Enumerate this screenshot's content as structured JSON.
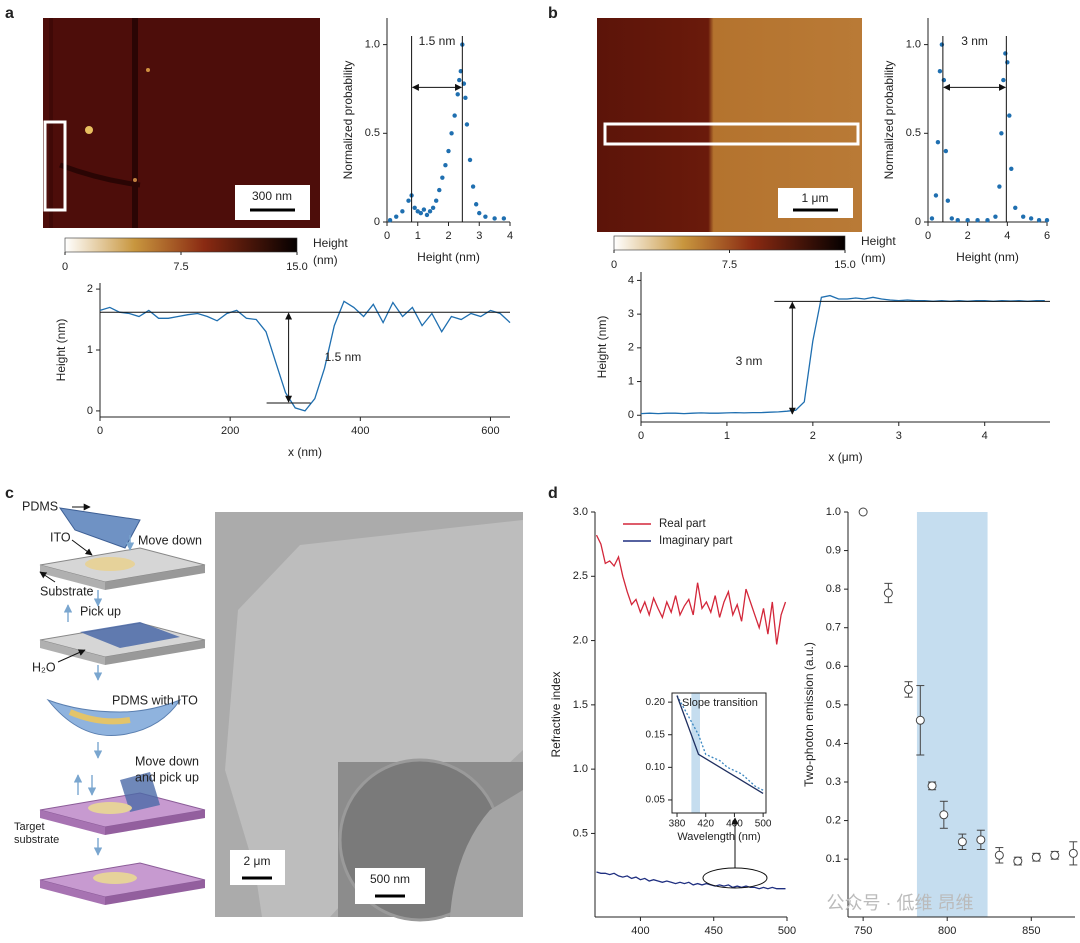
{
  "panel_labels": [
    "a",
    "b",
    "c",
    "d"
  ],
  "images": {
    "afm_a_scale": "300 nm",
    "afm_b_scale": "1 μm",
    "sem_scale": "2 μm",
    "sem_inset_scale": "500 nm"
  },
  "schematic": {
    "pdms": "PDMS",
    "ito": "ITO",
    "move_down": "Move down",
    "substrate": "Substrate",
    "pick_up": "Pick up",
    "water": "H₂O",
    "pdms_with_ito": "PDMS with ITO",
    "move_down_pick_up": [
      "Move down",
      "and pick up"
    ],
    "target_substrate": [
      "Target",
      "substrate"
    ]
  },
  "watermark": "公众号 · 低维 昂维",
  "colorbars": [
    {
      "lim": [
        0,
        15
      ],
      "ticks": [
        0,
        7.5,
        {
          "value": 15,
          "label": "15.0"
        }
      ],
      "label": [
        "Height",
        "(nm)"
      ]
    },
    {
      "lim": [
        0,
        15
      ],
      "ticks": [
        0,
        7.5,
        {
          "value": 15,
          "label": "15.0"
        }
      ],
      "label": [
        "Height",
        "(nm)"
      ]
    }
  ],
  "chart_data": [
    {
      "type": "scatter",
      "xlabel": "Height (nm)",
      "ylabel": "Normalized probability",
      "color": "#1f6fb0",
      "x": [
        0.1,
        0.3,
        0.5,
        0.7,
        0.8,
        0.9,
        1.0,
        1.1,
        1.2,
        1.3,
        1.4,
        1.5,
        1.6,
        1.7,
        1.8,
        1.9,
        2.0,
        2.1,
        2.2,
        2.3,
        2.35,
        2.4,
        2.45,
        2.5,
        2.55,
        2.6,
        2.7,
        2.8,
        2.9,
        3.0,
        3.2,
        3.5,
        3.8
      ],
      "y": [
        0.01,
        0.03,
        0.06,
        0.12,
        0.15,
        0.08,
        0.06,
        0.05,
        0.07,
        0.04,
        0.06,
        0.08,
        0.12,
        0.18,
        0.25,
        0.32,
        0.4,
        0.5,
        0.6,
        0.72,
        0.8,
        0.85,
        1.0,
        0.78,
        0.7,
        0.55,
        0.35,
        0.2,
        0.1,
        0.05,
        0.03,
        0.02,
        0.02
      ],
      "xlim": [
        0,
        4
      ],
      "xticks": [
        0,
        1,
        2,
        3,
        4
      ],
      "ylim": [
        0,
        1.15
      ],
      "yticks": [
        0,
        0.5,
        {
          "value": 1,
          "label": "1.0"
        }
      ],
      "markers": [
        0.8,
        2.45
      ],
      "annotation": "1.5 nm"
    },
    {
      "type": "line",
      "xlabel": "x (nm)",
      "ylabel": "Height (nm)",
      "color": "#1f6fb0",
      "x": [
        0,
        15,
        30,
        45,
        60,
        75,
        90,
        105,
        120,
        135,
        150,
        165,
        180,
        195,
        210,
        225,
        240,
        255,
        270,
        285,
        300,
        315,
        330,
        345,
        360,
        375,
        390,
        405,
        420,
        435,
        450,
        465,
        480,
        495,
        510,
        525,
        540,
        555,
        570,
        585,
        600,
        615,
        630
      ],
      "y": [
        1.65,
        1.7,
        1.62,
        1.6,
        1.55,
        1.65,
        1.52,
        1.52,
        1.55,
        1.58,
        1.6,
        1.55,
        1.48,
        1.6,
        1.65,
        1.52,
        1.5,
        1.3,
        0.8,
        0.3,
        0.05,
        0.0,
        0.2,
        0.7,
        1.4,
        1.8,
        1.7,
        1.55,
        1.75,
        1.45,
        1.78,
        1.55,
        1.7,
        1.4,
        1.6,
        1.3,
        1.55,
        1.5,
        1.6,
        1.55,
        1.65,
        1.6,
        1.45
      ],
      "xlim": [
        0,
        630
      ],
      "xticks": [
        0,
        200,
        400,
        600
      ],
      "ylim": [
        -0.1,
        2.1
      ],
      "yticks": [
        0,
        1,
        2
      ],
      "hlines": [
        1.62,
        0.13
      ],
      "annotation": "1.5 nm"
    },
    {
      "type": "scatter",
      "xlabel": "Height (nm)",
      "ylabel": "Normalized probability",
      "color": "#1f6fb0",
      "x": [
        0.2,
        0.4,
        0.5,
        0.6,
        0.7,
        0.8,
        0.9,
        1.0,
        1.2,
        1.5,
        2.0,
        2.5,
        3.0,
        3.4,
        3.6,
        3.7,
        3.8,
        3.9,
        4.0,
        4.1,
        4.2,
        4.4,
        4.8,
        5.2,
        5.6,
        6.0
      ],
      "y": [
        0.02,
        0.15,
        0.45,
        0.85,
        1.0,
        0.8,
        0.4,
        0.12,
        0.02,
        0.01,
        0.01,
        0.01,
        0.01,
        0.03,
        0.2,
        0.5,
        0.8,
        0.95,
        0.9,
        0.6,
        0.3,
        0.08,
        0.03,
        0.02,
        0.01,
        0.01
      ],
      "xlim": [
        0,
        6
      ],
      "xticks": [
        0,
        2,
        4,
        6
      ],
      "ylim": [
        0,
        1.15
      ],
      "yticks": [
        0,
        0.5,
        {
          "value": 1,
          "label": "1.0"
        }
      ],
      "markers": [
        0.75,
        3.95
      ],
      "annotation": "3 nm"
    },
    {
      "type": "line",
      "xlabel": "x (μm)",
      "ylabel": "Height (nm)",
      "color": "#1f6fb0",
      "x": [
        0,
        0.1,
        0.2,
        0.3,
        0.4,
        0.5,
        0.6,
        0.7,
        0.8,
        0.9,
        1.0,
        1.1,
        1.2,
        1.3,
        1.4,
        1.5,
        1.6,
        1.7,
        1.8,
        1.9,
        2.0,
        2.1,
        2.2,
        2.3,
        2.4,
        2.5,
        2.6,
        2.7,
        2.8,
        2.9,
        3.0,
        3.1,
        3.2,
        3.3,
        3.4,
        3.5,
        3.6,
        3.7,
        3.8,
        3.9,
        4.0,
        4.1,
        4.2,
        4.3,
        4.4,
        4.5,
        4.6,
        4.7
      ],
      "y": [
        0.05,
        0.06,
        0.05,
        0.06,
        0.06,
        0.05,
        0.06,
        0.07,
        0.06,
        0.06,
        0.07,
        0.08,
        0.07,
        0.08,
        0.08,
        0.09,
        0.1,
        0.12,
        0.15,
        0.4,
        2.2,
        3.5,
        3.55,
        3.45,
        3.45,
        3.48,
        3.45,
        3.5,
        3.45,
        3.42,
        3.4,
        3.42,
        3.4,
        3.4,
        3.38,
        3.4,
        3.38,
        3.4,
        3.38,
        3.4,
        3.4,
        3.38,
        3.4,
        3.39,
        3.4,
        3.38,
        3.4,
        3.4
      ],
      "xlim": [
        0,
        4.76
      ],
      "xticks": [
        0,
        1,
        2,
        3,
        4
      ],
      "ylim": [
        -0.2,
        4.25
      ],
      "yticks": [
        0,
        1,
        2,
        3,
        4
      ],
      "reference_line": 3.38,
      "annotation": "3 nm"
    },
    {
      "type": "line",
      "xlabel": "Wavelength (nm)",
      "ylabel": "Refractive index",
      "x": [
        370,
        373,
        376,
        379,
        382,
        385,
        388,
        391,
        394,
        397,
        400,
        403,
        406,
        409,
        412,
        415,
        418,
        421,
        424,
        427,
        430,
        433,
        436,
        439,
        442,
        445,
        448,
        451,
        454,
        457,
        460,
        463,
        466,
        469,
        472,
        475,
        478,
        481,
        484,
        487,
        490,
        493,
        496,
        499
      ],
      "series": [
        {
          "name": "Real part",
          "color": "#d3273a",
          "values": [
            2.82,
            2.75,
            2.6,
            2.62,
            2.58,
            2.65,
            2.5,
            2.38,
            2.28,
            2.32,
            2.22,
            2.3,
            2.2,
            2.33,
            2.25,
            2.18,
            2.3,
            2.22,
            2.35,
            2.2,
            2.27,
            2.32,
            2.2,
            2.45,
            2.25,
            2.3,
            2.22,
            2.35,
            2.18,
            2.3,
            2.38,
            2.2,
            2.28,
            2.15,
            2.4,
            2.3,
            2.2,
            2.1,
            2.25,
            2.05,
            2.3,
            1.97,
            2.2,
            2.3
          ]
        },
        {
          "name": "Imaginary part",
          "color": "#1f2f80",
          "values": [
            0.2,
            0.19,
            0.19,
            0.18,
            0.19,
            0.17,
            0.16,
            0.17,
            0.15,
            0.16,
            0.14,
            0.15,
            0.13,
            0.14,
            0.13,
            0.12,
            0.13,
            0.12,
            0.11,
            0.12,
            0.11,
            0.12,
            0.1,
            0.11,
            0.1,
            0.11,
            0.1,
            0.09,
            0.1,
            0.09,
            0.1,
            0.08,
            0.09,
            0.08,
            0.09,
            0.08,
            0.08,
            0.07,
            0.08,
            0.07,
            0.08,
            0.07,
            0.07,
            0.07
          ]
        }
      ],
      "xlim": [
        369,
        500
      ],
      "xticks": [
        400,
        450,
        500
      ],
      "ylim": [
        -0.15,
        3.0
      ],
      "yticks": [
        0.5,
        {
          "value": 1,
          "label": "1.0"
        },
        1.5,
        {
          "value": 2,
          "label": "2.0"
        },
        2.5,
        {
          "value": 3,
          "label": "3.0"
        }
      ]
    },
    {
      "type": "line",
      "title": "Slope transition",
      "xlabel": "Wavelength (nm)",
      "series": [
        {
          "color": "#3a86c0",
          "dash": true,
          "x": [
            380,
            390,
            400,
            410,
            420,
            430,
            440,
            450,
            460,
            470,
            480,
            490,
            500
          ],
          "values": [
            0.21,
            0.19,
            0.17,
            0.15,
            0.12,
            0.115,
            0.11,
            0.1,
            0.095,
            0.09,
            0.08,
            0.07,
            0.065
          ]
        },
        {
          "color": "#1f2f60",
          "x": [
            380,
            410,
            500
          ],
          "values": [
            0.21,
            0.12,
            0.06
          ]
        }
      ],
      "xlim": [
        373,
        504
      ],
      "xticks": [
        380,
        420,
        460,
        500
      ],
      "ylim": [
        0.03,
        0.214
      ],
      "yticks": [
        0.05,
        {
          "value": 0.1,
          "label": "0.10"
        },
        0.15,
        {
          "value": 0.2,
          "label": "0.20"
        }
      ],
      "shade": [
        400,
        412
      ],
      "shade_color": "#c5ddef"
    },
    {
      "type": "errorbar",
      "xlabel": "Wavelength (nm)",
      "ylabel": "Two-photon emission (a.u.)",
      "color": "#444",
      "x": [
        750,
        765,
        777,
        784,
        791,
        798,
        809,
        820,
        831,
        842,
        853,
        864,
        875
      ],
      "y": [
        1.0,
        0.79,
        0.54,
        0.46,
        0.29,
        0.215,
        0.145,
        0.15,
        0.11,
        0.095,
        0.105,
        0.11,
        0.115
      ],
      "errors": [
        0,
        0.025,
        0.02,
        0.09,
        0.01,
        0.035,
        0.02,
        0.025,
        0.02,
        0.01,
        0.01,
        0.01,
        0.03
      ],
      "xlim": [
        741,
        876
      ],
      "xticks": [
        750,
        800,
        850
      ],
      "ylim": [
        -0.05,
        1.0
      ],
      "yticks": [
        0.1,
        0.2,
        0.3,
        0.4,
        0.5,
        0.6,
        0.7,
        0.8,
        0.9,
        {
          "value": 1,
          "label": "1.0"
        }
      ],
      "shade": [
        782,
        824
      ],
      "shade_color": "#c5ddef"
    }
  ]
}
